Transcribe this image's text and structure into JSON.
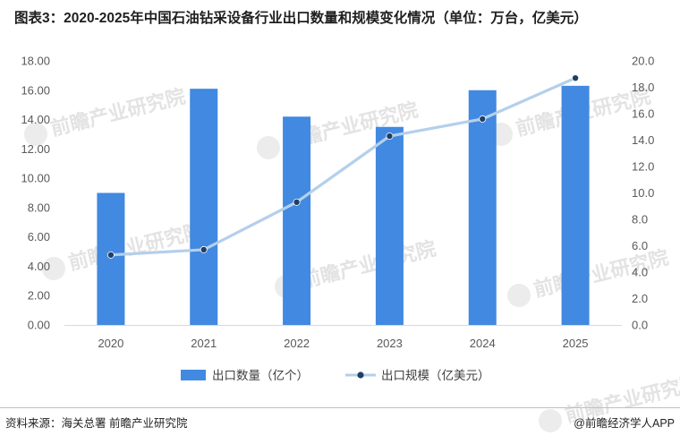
{
  "title": "图表3：2020-2025年中国石油钻采设备行业出口数量和规模变化情况（单位：万台，亿美元）",
  "source": "资料来源：海关总署 前瞻产业研究院",
  "brand": "@前瞻经济学人APP",
  "watermark": "前瞻产业研究院",
  "colors": {
    "bar": "#4189e1",
    "line": "#b4cfeb",
    "marker": "#1f3f66"
  },
  "chart_data": {
    "type": "bar",
    "title": "图表3：2020-2025年中国石油钻采设备行业出口数量和规模变化情况（单位：万台，亿美元）",
    "categories": [
      "2020",
      "2021",
      "2022",
      "2023",
      "2024",
      "2025"
    ],
    "y_left": {
      "min": 0,
      "max": 18,
      "step": 2,
      "tick_labels": [
        "0.00",
        "2.00",
        "4.00",
        "6.00",
        "8.00",
        "10.00",
        "12.00",
        "14.00",
        "16.00",
        "18.00"
      ]
    },
    "y_right": {
      "min": 0,
      "max": 20,
      "step": 2,
      "tick_labels": [
        "0.0",
        "2.0",
        "4.0",
        "6.0",
        "8.0",
        "10.0",
        "12.0",
        "14.0",
        "16.0",
        "18.0",
        "20.0"
      ]
    },
    "series": [
      {
        "name": "出口数量（亿个）",
        "type": "bar",
        "axis": "left",
        "values": [
          9.0,
          16.1,
          14.2,
          13.5,
          16.0,
          16.3
        ]
      },
      {
        "name": "出口规模（亿美元）",
        "type": "line",
        "axis": "right",
        "values": [
          5.3,
          5.7,
          9.3,
          14.3,
          15.6,
          18.7
        ]
      }
    ],
    "legend_position": "bottom",
    "grid": false
  }
}
